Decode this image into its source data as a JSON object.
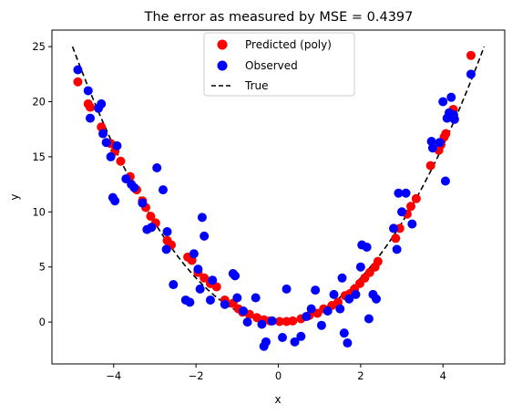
{
  "chart_data": {
    "type": "scatter",
    "title": "The error as measured by MSE = 0.4397",
    "xlabel": "x",
    "ylabel": "y",
    "xlim": [
      -5.5,
      5.5
    ],
    "ylim": [
      -3.8,
      26.5
    ],
    "xticks": [
      -4,
      -2,
      0,
      2,
      4
    ],
    "yticks": [
      0,
      5,
      10,
      15,
      20,
      25
    ],
    "grid": false,
    "legend_position": "top-center",
    "legend": [
      "Predicted (poly)",
      "Observed",
      "True"
    ],
    "series": [
      {
        "name": "Predicted (poly)",
        "kind": "scatter",
        "color": "#ff0000",
        "x": [
          -4.87,
          -4.62,
          -4.57,
          -4.3,
          -4.07,
          -3.97,
          -3.83,
          -3.6,
          -3.44,
          -3.3,
          -3.22,
          -3.1,
          -2.98,
          -2.7,
          -2.6,
          -2.2,
          -2.1,
          -1.95,
          -1.8,
          -1.65,
          -1.5,
          -1.3,
          -1.1,
          -0.97,
          -0.87,
          -0.7,
          -0.52,
          -0.35,
          -0.2,
          0.03,
          0.2,
          0.35,
          0.55,
          0.75,
          0.95,
          1.1,
          1.3,
          1.45,
          1.62,
          1.75,
          1.85,
          1.98,
          2.1,
          2.22,
          2.35,
          2.42,
          2.85,
          2.95,
          3.13,
          3.22,
          3.35,
          3.7,
          3.9,
          3.95,
          4.03,
          4.07,
          4.25,
          4.68
        ],
        "y": [
          21.8,
          19.8,
          19.5,
          17.7,
          16.2,
          15.5,
          14.6,
          13.2,
          12.0,
          11.0,
          10.4,
          9.6,
          9.0,
          7.4,
          7.0,
          5.9,
          5.6,
          4.5,
          4.0,
          3.5,
          3.2,
          2.0,
          1.7,
          1.2,
          0.9,
          0.7,
          0.4,
          0.2,
          0.1,
          0.05,
          0.05,
          0.1,
          0.3,
          0.6,
          0.8,
          1.2,
          1.5,
          1.8,
          2.4,
          2.6,
          3.0,
          3.5,
          4.0,
          4.5,
          5.0,
          5.5,
          7.6,
          8.5,
          9.8,
          10.5,
          11.2,
          14.2,
          15.6,
          16.1,
          16.8,
          17.1,
          19.3,
          24.2
        ]
      },
      {
        "name": "Observed",
        "kind": "scatter",
        "color": "#0000ff",
        "x": [
          -4.87,
          -4.62,
          -4.57,
          -4.37,
          -4.3,
          -4.26,
          -4.18,
          -4.07,
          -4.02,
          -3.97,
          -3.92,
          -3.7,
          -3.57,
          -3.5,
          -3.3,
          -3.19,
          -3.08,
          -2.95,
          -2.8,
          -2.72,
          -2.7,
          -2.55,
          -2.25,
          -2.15,
          -2.05,
          -1.95,
          -1.9,
          -1.85,
          -1.8,
          -1.65,
          -1.6,
          -1.3,
          -1.1,
          -1.05,
          -1.0,
          -0.85,
          -0.75,
          -0.55,
          -0.4,
          -0.35,
          -0.3,
          -0.15,
          0.1,
          0.2,
          0.4,
          0.55,
          0.68,
          0.8,
          0.9,
          1.05,
          1.2,
          1.35,
          1.5,
          1.55,
          1.6,
          1.68,
          1.72,
          1.88,
          2.0,
          2.03,
          2.15,
          2.2,
          2.3,
          2.38,
          2.8,
          2.88,
          2.92,
          3.0,
          3.1,
          3.25,
          3.72,
          3.75,
          3.92,
          4.0,
          4.06,
          4.1,
          4.15,
          4.2,
          4.26,
          4.28,
          4.68
        ],
        "y": [
          22.9,
          21.0,
          18.5,
          19.4,
          19.8,
          17.1,
          16.3,
          15.0,
          11.3,
          11.0,
          16.0,
          13.0,
          12.5,
          12.2,
          10.8,
          8.4,
          8.6,
          14.0,
          12.0,
          6.6,
          8.2,
          3.4,
          2.0,
          1.8,
          6.2,
          4.8,
          3.0,
          9.5,
          7.8,
          2.0,
          3.8,
          1.6,
          4.4,
          4.2,
          2.2,
          1.0,
          0.0,
          2.2,
          -0.2,
          -2.2,
          -1.8,
          0.1,
          -1.4,
          3.0,
          -1.8,
          -1.3,
          0.5,
          1.2,
          2.9,
          -0.3,
          1.0,
          2.5,
          1.2,
          4.0,
          -1.0,
          -1.9,
          2.1,
          2.5,
          5.0,
          7.0,
          6.8,
          0.3,
          2.5,
          2.1,
          8.5,
          6.6,
          11.7,
          10.0,
          11.7,
          8.9,
          16.4,
          15.8,
          16.3,
          20.0,
          12.8,
          18.5,
          19.0,
          20.4,
          18.8,
          18.4,
          22.5
        ]
      },
      {
        "name": "True",
        "kind": "line",
        "style": "dashed",
        "color": "#000000",
        "formula": "y = x^2",
        "x_range": [
          -5,
          5
        ]
      }
    ]
  }
}
